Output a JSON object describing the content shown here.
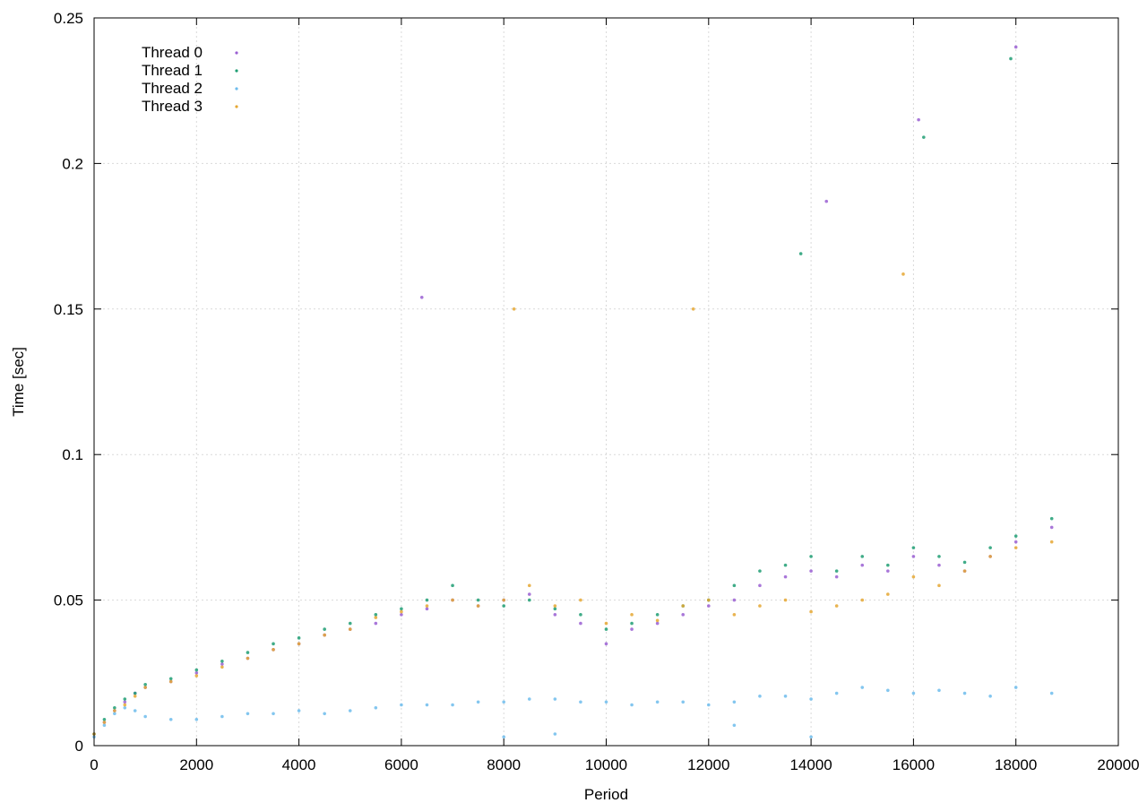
{
  "chart_data": {
    "type": "scatter",
    "title": "",
    "xlabel": "Period",
    "ylabel": "Time [sec]",
    "xlim": [
      0,
      20000
    ],
    "ylim": [
      0,
      0.25
    ],
    "x_ticks": [
      "0",
      "2000",
      "4000",
      "6000",
      "8000",
      "10000",
      "12000",
      "14000",
      "16000",
      "18000",
      "20000"
    ],
    "x_tick_values": [
      0,
      2000,
      4000,
      6000,
      8000,
      10000,
      12000,
      14000,
      16000,
      18000,
      20000
    ],
    "y_ticks": [
      "0",
      "0.05",
      "0.1",
      "0.15",
      "0.2",
      "0.25"
    ],
    "y_tick_values": [
      0,
      0.05,
      0.1,
      0.15,
      0.2,
      0.25
    ],
    "grid": true,
    "legend_position": "top-left",
    "series": [
      {
        "name": "Thread 0",
        "color": "#9a5fd2",
        "points": [
          [
            0,
            0.004
          ],
          [
            200,
            0.008
          ],
          [
            400,
            0.012
          ],
          [
            600,
            0.015
          ],
          [
            800,
            0.018
          ],
          [
            1000,
            0.02
          ],
          [
            1500,
            0.022
          ],
          [
            2000,
            0.025
          ],
          [
            2500,
            0.028
          ],
          [
            3000,
            0.03
          ],
          [
            3500,
            0.033
          ],
          [
            4000,
            0.035
          ],
          [
            4500,
            0.038
          ],
          [
            5000,
            0.04
          ],
          [
            5500,
            0.042
          ],
          [
            6000,
            0.045
          ],
          [
            6500,
            0.047
          ],
          [
            7000,
            0.05
          ],
          [
            7500,
            0.048
          ],
          [
            8000,
            0.05
          ],
          [
            8500,
            0.052
          ],
          [
            9000,
            0.045
          ],
          [
            9500,
            0.042
          ],
          [
            10000,
            0.035
          ],
          [
            10500,
            0.04
          ],
          [
            11000,
            0.042
          ],
          [
            11500,
            0.045
          ],
          [
            12000,
            0.048
          ],
          [
            12500,
            0.05
          ],
          [
            13000,
            0.055
          ],
          [
            13500,
            0.058
          ],
          [
            14000,
            0.06
          ],
          [
            14500,
            0.058
          ],
          [
            15000,
            0.062
          ],
          [
            15500,
            0.06
          ],
          [
            16000,
            0.065
          ],
          [
            16500,
            0.062
          ],
          [
            17000,
            0.06
          ],
          [
            17500,
            0.065
          ],
          [
            18000,
            0.07
          ],
          [
            18700,
            0.075
          ],
          [
            18000,
            0.24
          ],
          [
            16100,
            0.215
          ],
          [
            14300,
            0.187
          ],
          [
            6400,
            0.154
          ]
        ]
      },
      {
        "name": "Thread 1",
        "color": "#1f9e73",
        "points": [
          [
            0,
            0.004
          ],
          [
            200,
            0.009
          ],
          [
            400,
            0.013
          ],
          [
            600,
            0.016
          ],
          [
            800,
            0.018
          ],
          [
            1000,
            0.021
          ],
          [
            1500,
            0.023
          ],
          [
            2000,
            0.026
          ],
          [
            2500,
            0.029
          ],
          [
            3000,
            0.032
          ],
          [
            3500,
            0.035
          ],
          [
            4000,
            0.037
          ],
          [
            4500,
            0.04
          ],
          [
            5000,
            0.042
          ],
          [
            5500,
            0.045
          ],
          [
            6000,
            0.047
          ],
          [
            6500,
            0.05
          ],
          [
            7000,
            0.055
          ],
          [
            7500,
            0.05
          ],
          [
            8000,
            0.048
          ],
          [
            8500,
            0.05
          ],
          [
            9000,
            0.047
          ],
          [
            9500,
            0.045
          ],
          [
            10000,
            0.04
          ],
          [
            10500,
            0.042
          ],
          [
            11000,
            0.045
          ],
          [
            11500,
            0.048
          ],
          [
            12000,
            0.05
          ],
          [
            12500,
            0.055
          ],
          [
            13000,
            0.06
          ],
          [
            13500,
            0.062
          ],
          [
            14000,
            0.065
          ],
          [
            14500,
            0.06
          ],
          [
            15000,
            0.065
          ],
          [
            15500,
            0.062
          ],
          [
            16000,
            0.068
          ],
          [
            16500,
            0.065
          ],
          [
            17000,
            0.063
          ],
          [
            17500,
            0.068
          ],
          [
            18000,
            0.072
          ],
          [
            18700,
            0.078
          ],
          [
            17900,
            0.236
          ],
          [
            16200,
            0.209
          ],
          [
            13800,
            0.169
          ]
        ]
      },
      {
        "name": "Thread 2",
        "color": "#6dbcec",
        "points": [
          [
            0,
            0.003
          ],
          [
            200,
            0.007
          ],
          [
            400,
            0.011
          ],
          [
            600,
            0.013
          ],
          [
            800,
            0.012
          ],
          [
            1000,
            0.01
          ],
          [
            1500,
            0.009
          ],
          [
            2000,
            0.009
          ],
          [
            2500,
            0.01
          ],
          [
            3000,
            0.011
          ],
          [
            3500,
            0.011
          ],
          [
            4000,
            0.012
          ],
          [
            4500,
            0.011
          ],
          [
            5000,
            0.012
          ],
          [
            5500,
            0.013
          ],
          [
            6000,
            0.014
          ],
          [
            6500,
            0.014
          ],
          [
            7000,
            0.014
          ],
          [
            7500,
            0.015
          ],
          [
            8000,
            0.015
          ],
          [
            8500,
            0.016
          ],
          [
            9000,
            0.016
          ],
          [
            9500,
            0.015
          ],
          [
            10000,
            0.015
          ],
          [
            10500,
            0.014
          ],
          [
            11000,
            0.015
          ],
          [
            11500,
            0.015
          ],
          [
            12000,
            0.014
          ],
          [
            12500,
            0.015
          ],
          [
            13000,
            0.017
          ],
          [
            13500,
            0.017
          ],
          [
            14000,
            0.016
          ],
          [
            14500,
            0.018
          ],
          [
            15000,
            0.02
          ],
          [
            15500,
            0.019
          ],
          [
            16000,
            0.018
          ],
          [
            16500,
            0.019
          ],
          [
            17000,
            0.018
          ],
          [
            17500,
            0.017
          ],
          [
            18000,
            0.02
          ],
          [
            18700,
            0.018
          ],
          [
            12500,
            0.007
          ],
          [
            14000,
            0.003
          ],
          [
            9000,
            0.004
          ],
          [
            8000,
            0.003
          ]
        ]
      },
      {
        "name": "Thread 3",
        "color": "#e5a732",
        "points": [
          [
            0,
            0.004
          ],
          [
            200,
            0.008
          ],
          [
            400,
            0.012
          ],
          [
            600,
            0.014
          ],
          [
            800,
            0.017
          ],
          [
            1000,
            0.02
          ],
          [
            1500,
            0.022
          ],
          [
            2000,
            0.024
          ],
          [
            2500,
            0.027
          ],
          [
            3000,
            0.03
          ],
          [
            3500,
            0.033
          ],
          [
            4000,
            0.035
          ],
          [
            4500,
            0.038
          ],
          [
            5000,
            0.04
          ],
          [
            5500,
            0.044
          ],
          [
            6000,
            0.046
          ],
          [
            6500,
            0.048
          ],
          [
            7000,
            0.05
          ],
          [
            7500,
            0.048
          ],
          [
            8000,
            0.05
          ],
          [
            8500,
            0.055
          ],
          [
            9000,
            0.048
          ],
          [
            9500,
            0.05
          ],
          [
            10000,
            0.042
          ],
          [
            10500,
            0.045
          ],
          [
            11000,
            0.043
          ],
          [
            11500,
            0.048
          ],
          [
            12000,
            0.05
          ],
          [
            12500,
            0.045
          ],
          [
            13000,
            0.048
          ],
          [
            13500,
            0.05
          ],
          [
            14000,
            0.046
          ],
          [
            14500,
            0.048
          ],
          [
            15000,
            0.05
          ],
          [
            15500,
            0.052
          ],
          [
            16000,
            0.058
          ],
          [
            16500,
            0.055
          ],
          [
            17000,
            0.06
          ],
          [
            17500,
            0.065
          ],
          [
            18000,
            0.068
          ],
          [
            18700,
            0.07
          ],
          [
            8200,
            0.15
          ],
          [
            15800,
            0.162
          ],
          [
            11700,
            0.15
          ]
        ]
      }
    ]
  }
}
